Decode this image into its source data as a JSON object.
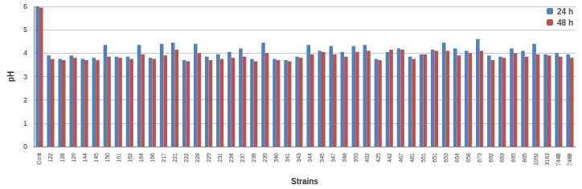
{
  "chart_data": {
    "type": "bar",
    "categories": [
      "Cont",
      "122",
      "128",
      "129",
      "144",
      "145",
      "150",
      "161",
      "162",
      "164",
      "166",
      "217",
      "221",
      "222",
      "228",
      "229",
      "231",
      "234",
      "237",
      "238",
      "239",
      "340",
      "341",
      "343",
      "344",
      "345",
      "347",
      "348",
      "393",
      "402",
      "425",
      "442",
      "467",
      "481",
      "551",
      "651",
      "653",
      "654",
      "658",
      "673",
      "692",
      "693",
      "695",
      "805",
      "1092",
      "3163",
      "744B",
      "748B"
    ],
    "series": [
      {
        "name": "24 h",
        "color": "#4f81bd",
        "values": [
          6.0,
          3.9,
          3.75,
          3.9,
          3.75,
          3.8,
          4.35,
          3.85,
          3.85,
          4.35,
          3.8,
          4.4,
          4.45,
          3.7,
          4.4,
          3.85,
          3.95,
          4.05,
          4.2,
          3.75,
          4.45,
          3.75,
          3.7,
          3.85,
          4.35,
          4.1,
          4.3,
          4.05,
          4.3,
          4.35,
          3.75,
          4.05,
          4.2,
          3.85,
          3.95,
          4.15,
          4.45,
          4.2,
          4.1,
          4.6,
          3.9,
          3.85,
          4.2,
          4.1,
          4.4,
          3.95,
          4.0,
          3.95
        ]
      },
      {
        "name": "48 h",
        "color": "#c0504d",
        "values": [
          5.95,
          3.75,
          3.7,
          3.8,
          3.7,
          3.7,
          3.85,
          3.8,
          3.75,
          3.95,
          3.75,
          3.9,
          4.15,
          3.65,
          4.0,
          3.7,
          3.75,
          3.8,
          3.85,
          3.65,
          4.0,
          3.7,
          3.65,
          3.8,
          3.95,
          4.05,
          3.95,
          3.85,
          4.05,
          4.1,
          3.7,
          4.15,
          4.15,
          3.75,
          3.95,
          4.1,
          4.1,
          3.9,
          4.0,
          4.1,
          3.7,
          3.8,
          4.0,
          3.85,
          3.95,
          3.9,
          3.85,
          3.8
        ]
      }
    ],
    "x_label": "Strains",
    "y_label": "pH",
    "ylim": [
      0,
      6
    ],
    "yticks": [
      0,
      1,
      2,
      3,
      4,
      5,
      6
    ],
    "grid": true,
    "legend": "top-right"
  }
}
